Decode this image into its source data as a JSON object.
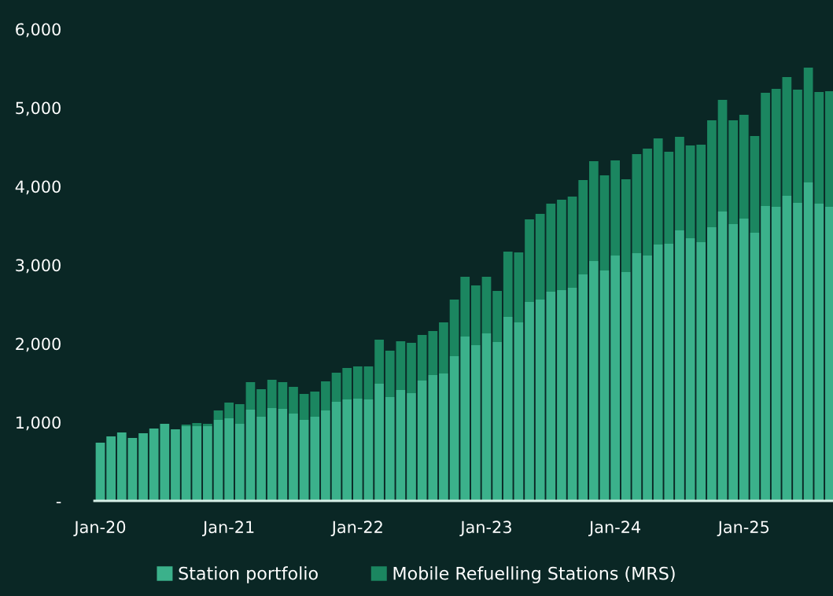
{
  "chart_data": {
    "type": "bar",
    "stacked": true,
    "categories": [
      "Jan-20",
      null,
      null,
      null,
      null,
      null,
      null,
      null,
      null,
      null,
      null,
      null,
      "Jan-21",
      null,
      null,
      null,
      null,
      null,
      null,
      null,
      null,
      null,
      null,
      null,
      "Jan-22",
      null,
      null,
      null,
      null,
      null,
      null,
      null,
      null,
      null,
      null,
      null,
      "Jan-23",
      null,
      null,
      null,
      null,
      null,
      null,
      null,
      null,
      null,
      null,
      null,
      "Jan-24",
      null,
      null,
      null,
      null,
      null,
      null,
      null,
      null,
      null,
      null,
      null,
      "Jan-25",
      null,
      null,
      null,
      null,
      null,
      null,
      null,
      null
    ],
    "series": [
      {
        "name": "Station portfolio",
        "color": "#3bb18b",
        "values": [
          740,
          820,
          870,
          800,
          860,
          920,
          980,
          910,
          950,
          950,
          950,
          1030,
          1050,
          980,
          1160,
          1070,
          1180,
          1170,
          1110,
          1030,
          1070,
          1150,
          1260,
          1290,
          1300,
          1290,
          1490,
          1320,
          1410,
          1370,
          1530,
          1600,
          1620,
          1840,
          2090,
          1980,
          2130,
          2020,
          2340,
          2270,
          2530,
          2560,
          2660,
          2680,
          2710,
          2880,
          3050,
          2930,
          3120,
          2910,
          3150,
          3120,
          3260,
          3270,
          3440,
          3340,
          3290,
          3480,
          3680,
          3520,
          3590,
          3410,
          3750,
          3740,
          3880,
          3790,
          4050,
          3780,
          3740
        ]
      },
      {
        "name": "Mobile Refuelling Stations (MRS)",
        "color": "#1b8660",
        "values": [
          0,
          0,
          0,
          0,
          0,
          0,
          0,
          0,
          20,
          40,
          30,
          120,
          200,
          250,
          350,
          350,
          360,
          340,
          340,
          330,
          320,
          370,
          370,
          400,
          410,
          420,
          560,
          590,
          620,
          640,
          580,
          560,
          650,
          720,
          760,
          760,
          720,
          650,
          830,
          890,
          1050,
          1090,
          1120,
          1150,
          1160,
          1200,
          1270,
          1210,
          1210,
          1180,
          1260,
          1360,
          1350,
          1170,
          1190,
          1180,
          1240,
          1360,
          1420,
          1320,
          1320,
          1230,
          1440,
          1500,
          1510,
          1440,
          1460,
          1420,
          1470
        ]
      }
    ],
    "ylim": [
      0,
      6000
    ],
    "yticks": [
      {
        "value": 0,
        "label": "-"
      },
      {
        "value": 1000,
        "label": "1,000"
      },
      {
        "value": 2000,
        "label": "2,000"
      },
      {
        "value": 3000,
        "label": "3,000"
      },
      {
        "value": 4000,
        "label": "4,000"
      },
      {
        "value": 5000,
        "label": "5,000"
      },
      {
        "value": 6000,
        "label": "6,000"
      }
    ],
    "legend": "bottom"
  }
}
